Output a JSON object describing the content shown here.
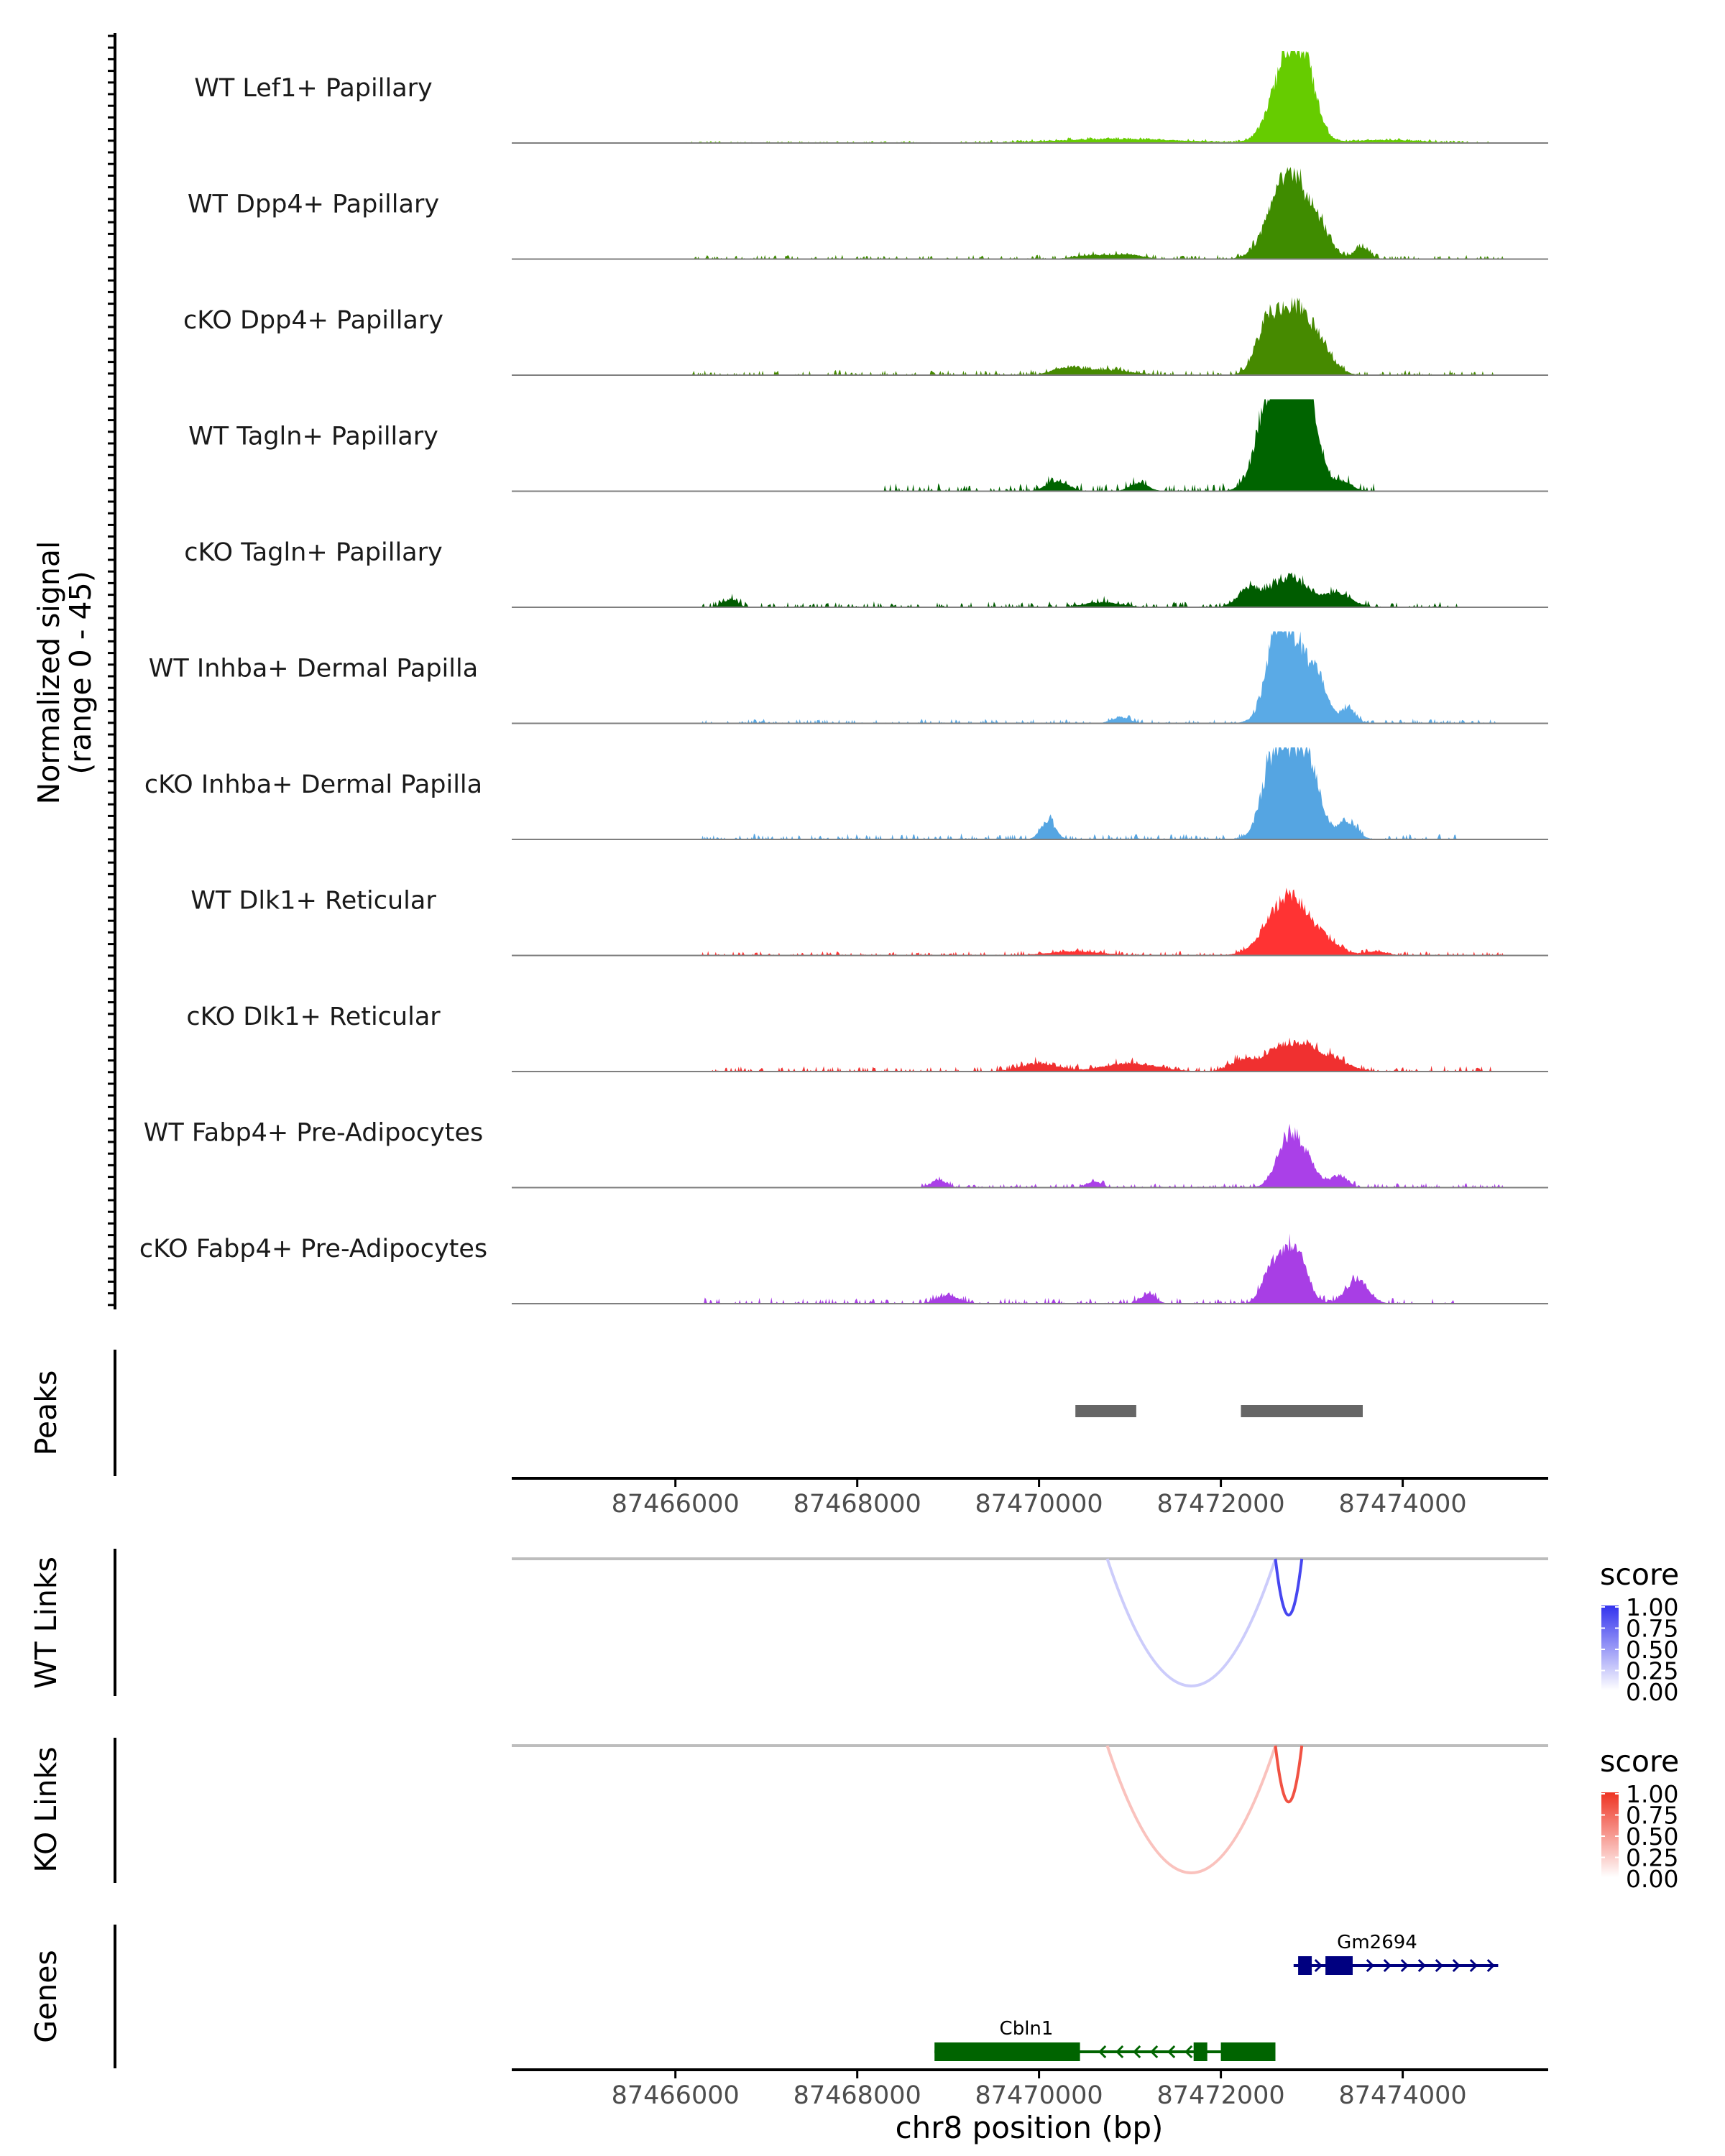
{
  "colors": {
    "axis": "#000000",
    "baseline": "#7f7f7f",
    "peak_bar": "#666666",
    "link_baseline": "#bdbdbd",
    "tick_label": "#4d4d4d"
  },
  "chart_data": {
    "type": "genome-coverage",
    "region": {
      "chromosome": "chr8",
      "start": 87464200,
      "end": 87475600
    },
    "x_axis": {
      "label": "chr8 position (bp)",
      "ticks": [
        87466000,
        87468000,
        87470000,
        87472000,
        87474000
      ],
      "tick_labels": [
        "87466000",
        "87468000",
        "87470000",
        "87472000",
        "87474000"
      ]
    },
    "coverage": {
      "ylabel_line1": "Normalized signal",
      "ylabel_line2": "(range 0 - 45)",
      "ylim": [
        0,
        45
      ],
      "tracks": [
        {
          "name": "WT Lef1+ Papillary",
          "color": "#66cc00",
          "peaks": [
            [
              87472750,
              42,
              180
            ],
            [
              87472950,
              18,
              120
            ],
            [
              87470900,
              2,
              700
            ],
            [
              87473800,
              1.5,
              400
            ]
          ],
          "noise": [
            [
              87466000,
              87475000,
              0.5
            ]
          ]
        },
        {
          "name": "WT Dpp4+ Papillary",
          "color": "#3f8c00",
          "peaks": [
            [
              87472750,
              44,
              200
            ],
            [
              87473100,
              10,
              120
            ],
            [
              87473550,
              6,
              80
            ],
            [
              87470600,
              2,
              200
            ],
            [
              87471000,
              2,
              150
            ]
          ],
          "noise": [
            [
              87466200,
              87475100,
              1.0
            ]
          ]
        },
        {
          "name": "cKO Dpp4+ Papillary",
          "color": "#468a00",
          "peaks": [
            [
              87472800,
              32,
              200
            ],
            [
              87472500,
              18,
              120
            ],
            [
              87473100,
              8,
              150
            ],
            [
              87470300,
              3,
              150
            ],
            [
              87470700,
              2.5,
              300
            ]
          ],
          "noise": [
            [
              87466100,
              87475100,
              1.2
            ]
          ]
        },
        {
          "name": "WT Tagln+ Papillary",
          "color": "#006400",
          "peaks": [
            [
              87472750,
              45,
              220
            ],
            [
              87472900,
              34,
              120
            ],
            [
              87472500,
              22,
              120
            ],
            [
              87473350,
              4,
              100
            ],
            [
              87470200,
              5,
              120
            ],
            [
              87471100,
              4,
              100
            ]
          ],
          "noise": [
            [
              87468300,
              87473700,
              1.8
            ]
          ]
        },
        {
          "name": "cKO Tagln+ Papillary",
          "color": "#005c00",
          "peaks": [
            [
              87472750,
              14,
              220
            ],
            [
              87472300,
              8,
              120
            ],
            [
              87473300,
              6,
              150
            ],
            [
              87466600,
              4,
              80
            ],
            [
              87470700,
              2.5,
              200
            ]
          ],
          "noise": [
            [
              87466300,
              87474600,
              1.3
            ]
          ]
        },
        {
          "name": "WT Inhba+ Dermal Papilla",
          "color": "#5aaae6",
          "peaks": [
            [
              87472800,
              41,
              200
            ],
            [
              87472600,
              22,
              100
            ],
            [
              87473100,
              9,
              80
            ],
            [
              87473400,
              7,
              80
            ],
            [
              87470900,
              3,
              100
            ]
          ],
          "noise": [
            [
              87466300,
              87475100,
              1.0
            ]
          ]
        },
        {
          "name": "cKO Inhba+ Dermal Papilla",
          "color": "#55a5e2",
          "peaks": [
            [
              87472800,
              43,
              200
            ],
            [
              87472550,
              22,
              110
            ],
            [
              87473000,
              13,
              100
            ],
            [
              87470100,
              9,
              80
            ],
            [
              87473400,
              8,
              100
            ]
          ],
          "noise": [
            [
              87466300,
              87474600,
              1.3
            ]
          ]
        },
        {
          "name": "WT Dlk1+ Reticular",
          "color": "#ff3333",
          "peaks": [
            [
              87472750,
              29,
              230
            ],
            [
              87473200,
              4,
              150
            ],
            [
              87473700,
              2,
              120
            ],
            [
              87470400,
              2,
              300
            ]
          ],
          "noise": [
            [
              87466300,
              87475100,
              1.0
            ]
          ]
        },
        {
          "name": "cKO Dlk1+ Reticular",
          "color": "#f03030",
          "peaks": [
            [
              87472750,
              14,
              260
            ],
            [
              87473200,
              5,
              200
            ],
            [
              87472200,
              4,
              120
            ],
            [
              87470000,
              4,
              200
            ],
            [
              87471000,
              4,
              300
            ]
          ],
          "noise": [
            [
              87466300,
              87475100,
              1.3
            ]
          ]
        },
        {
          "name": "WT Fabp4+ Pre-Adipocytes",
          "color": "#aa40e8",
          "peaks": [
            [
              87472750,
              24,
              130
            ],
            [
              87472950,
              10,
              120
            ],
            [
              87473300,
              6,
              90
            ],
            [
              87468900,
              4,
              80
            ],
            [
              87470600,
              3,
              80
            ]
          ],
          "noise": [
            [
              87468700,
              87475100,
              1.0
            ]
          ]
        },
        {
          "name": "cKO Fabp4+ Pre-Adipocytes",
          "color": "#a83ee5",
          "peaks": [
            [
              87472800,
              29,
              130
            ],
            [
              87472550,
              16,
              100
            ],
            [
              87473500,
              12,
              120
            ],
            [
              87471200,
              5,
              80
            ],
            [
              87469000,
              4,
              120
            ]
          ],
          "noise": [
            [
              87466300,
              87474600,
              1.4
            ]
          ]
        }
      ]
    },
    "peaks_track": {
      "label": "Peaks",
      "intervals": [
        [
          87470400,
          87471070
        ],
        [
          87472220,
          87473560
        ]
      ]
    },
    "wt_links": {
      "label": "WT Links",
      "legend_title": "score",
      "legend_ticks": [
        "1.00",
        "0.75",
        "0.50",
        "0.25",
        "0.00"
      ],
      "color_high": "#3333ee",
      "color_low": "#ffffff",
      "links": [
        {
          "start": 87470750,
          "end": 87472600,
          "score": 0.25
        },
        {
          "start": 87472600,
          "end": 87472890,
          "score": 0.9
        }
      ]
    },
    "ko_links": {
      "label": "KO Links",
      "legend_title": "score",
      "legend_ticks": [
        "1.00",
        "0.75",
        "0.50",
        "0.25",
        "0.00"
      ],
      "color_high": "#ee3322",
      "color_low": "#ffffff",
      "links": [
        {
          "start": 87470750,
          "end": 87472600,
          "score": 0.3
        },
        {
          "start": 87472600,
          "end": 87472890,
          "score": 0.85
        }
      ]
    },
    "genes": {
      "label": "Genes",
      "items": [
        {
          "name": "Gm2694",
          "strand": "+",
          "color": "#000080",
          "start": 87472800,
          "end": 87475050,
          "exons": [
            [
              87472850,
              87473000
            ],
            [
              87473150,
              87473450
            ]
          ]
        },
        {
          "name": "Cbln1",
          "strand": "-",
          "color": "#006400",
          "start": 87468850,
          "end": 87472600,
          "exons": [
            [
              87468850,
              87470450
            ],
            [
              87471700,
              87471850
            ],
            [
              87472000,
              87472600
            ]
          ]
        }
      ]
    }
  }
}
